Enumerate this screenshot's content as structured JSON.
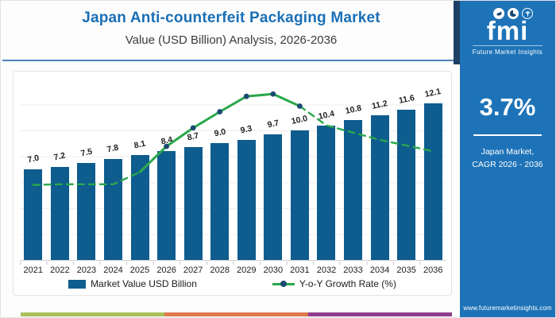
{
  "header": {
    "title": "Japan Anti-counterfeit Packaging Market",
    "subtitle": "Value (USD Billion) Analysis, 2026-2036"
  },
  "chart_data": {
    "type": "bar",
    "title": "Japan Anti-counterfeit Packaging Market",
    "subtitle": "Value (USD Billion) Analysis, 2026-2036",
    "categories": [
      "2021",
      "2022",
      "2023",
      "2024",
      "2025",
      "2026",
      "2027",
      "2028",
      "2029",
      "2030",
      "2031",
      "2032",
      "2033",
      "2034",
      "2035",
      "2036"
    ],
    "series": [
      {
        "name": "Market Value USD Billion",
        "type": "bar",
        "color": "#0f5c8e",
        "values": [
          7.0,
          7.2,
          7.5,
          7.8,
          8.1,
          8.4,
          8.7,
          9.0,
          9.3,
          9.7,
          10.0,
          10.4,
          10.8,
          11.2,
          11.6,
          12.1
        ],
        "value_labels": [
          "7.0",
          "7.2",
          "7.5",
          "7.8",
          "8.1",
          "8.4",
          "8.7",
          "9.0",
          "9.3",
          "9.7",
          "10.0",
          "10.4",
          "10.8",
          "11.2",
          "11.6",
          "12.1"
        ]
      },
      {
        "name": "Y-o-Y Growth Rate (%)",
        "type": "line",
        "color": "#2aa84c",
        "marker_color": "#1c4a73",
        "axis": "secondary (unlabeled)",
        "y_fractions": [
          0.418,
          0.422,
          0.422,
          0.422,
          0.489,
          0.631,
          0.733,
          0.822,
          0.907,
          0.92,
          0.853,
          0.747,
          0.707,
          0.667,
          0.636,
          0.604
        ],
        "marker_indices": [
          5,
          6,
          7,
          8,
          9,
          10
        ],
        "solid_segment": [
          4,
          10
        ],
        "line_style": "dashed at both ends, solid with markers from 2025 to 2031, peak at 2030"
      }
    ],
    "ylim": [
      0,
      14
    ],
    "y_axis_labels_visible": false,
    "gridlines": true,
    "legend_position": "bottom"
  },
  "sidebar": {
    "logo_text": "fmi",
    "logo_caption": "Future Market Insights",
    "stat_value": "3.7%",
    "stat_label_line1": "Japan Market,",
    "stat_label_line2": "CAGR 2026 - 2036",
    "website": "www.futuremarketinsights.com",
    "bg_color": "#1e73b8"
  },
  "footer_strip_colors": [
    "#a9c05b",
    "#dd7a4e",
    "#8f3e8f"
  ]
}
